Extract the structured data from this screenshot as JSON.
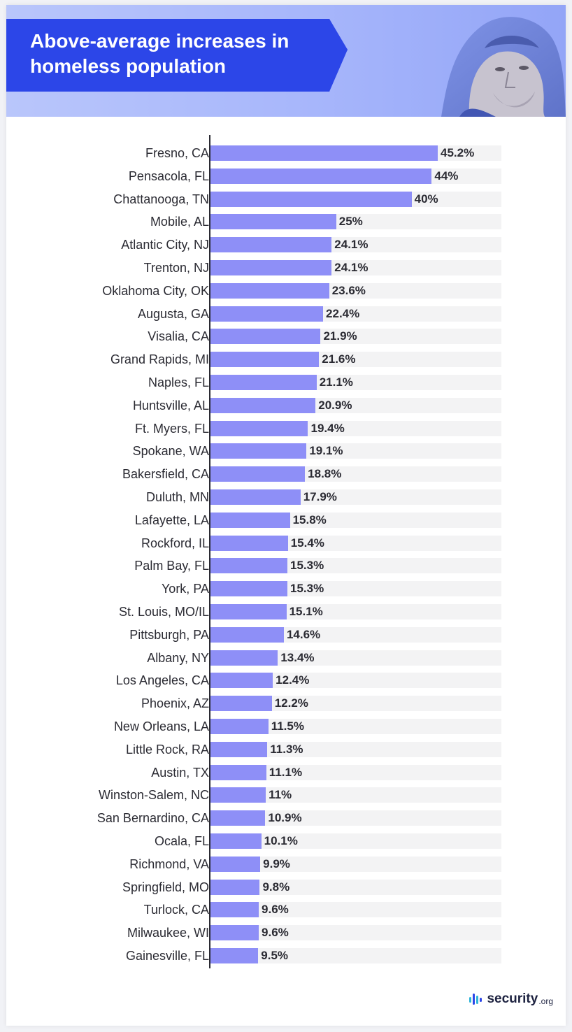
{
  "header": {
    "title": "Above-average increases in homeless population",
    "banner_color": "#2c46e8",
    "photo": "homeless-man-portrait"
  },
  "brand": {
    "logo_word": "security",
    "logo_tld": ".org",
    "icon": "security-org-logo-icon"
  },
  "chart_data": {
    "type": "bar",
    "orientation": "horizontal",
    "title": "Above-average increases in homeless population",
    "xlabel": "",
    "ylabel": "",
    "xlim": [
      0,
      45.2
    ],
    "grid": false,
    "bar_color": "#8e8ff7",
    "track_color": "#f3f3f4",
    "categories": [
      "Fresno, CA",
      "Pensacola, FL",
      "Chattanooga, TN",
      "Mobile, AL",
      "Atlantic City, NJ",
      "Trenton, NJ",
      "Oklahoma City, OK",
      "Augusta, GA",
      "Visalia, CA",
      "Grand Rapids, MI",
      "Naples, FL",
      "Huntsville, AL",
      "Ft. Myers, FL",
      "Spokane, WA",
      "Bakersfield, CA",
      "Duluth, MN",
      "Lafayette, LA",
      "Rockford, IL",
      "Palm Bay, FL",
      "York, PA",
      "St. Louis, MO/IL",
      "Pittsburgh, PA",
      "Albany, NY",
      "Los Angeles, CA",
      "Phoenix, AZ",
      "New Orleans, LA",
      "Little Rock, RA",
      "Austin, TX",
      "Winston-Salem, NC",
      "San Bernardino, CA",
      "Ocala, FL",
      "Richmond, VA",
      "Springfield, MO",
      "Turlock, CA",
      "Milwaukee, WI",
      "Gainesville, FL"
    ],
    "values": [
      45.2,
      44,
      40,
      25,
      24.1,
      24.1,
      23.6,
      22.4,
      21.9,
      21.6,
      21.1,
      20.9,
      19.4,
      19.1,
      18.8,
      17.9,
      15.8,
      15.4,
      15.3,
      15.3,
      15.1,
      14.6,
      13.4,
      12.4,
      12.2,
      11.5,
      11.3,
      11.1,
      11,
      10.9,
      10.1,
      9.9,
      9.8,
      9.6,
      9.6,
      9.5
    ],
    "value_labels": [
      "45.2%",
      "44%",
      "40%",
      "25%",
      "24.1%",
      "24.1%",
      "23.6%",
      "22.4%",
      "21.9%",
      "21.6%",
      "21.1%",
      "20.9%",
      "19.4%",
      "19.1%",
      "18.8%",
      "17.9%",
      "15.8%",
      "15.4%",
      "15.3%",
      "15.3%",
      "15.1%",
      "14.6%",
      "13.4%",
      "12.4%",
      "12.2%",
      "11.5%",
      "11.3%",
      "11.1%",
      "11%",
      "10.9%",
      "10.1%",
      "9.9%",
      "9.8%",
      "9.6%",
      "9.6%",
      "9.5%"
    ]
  }
}
